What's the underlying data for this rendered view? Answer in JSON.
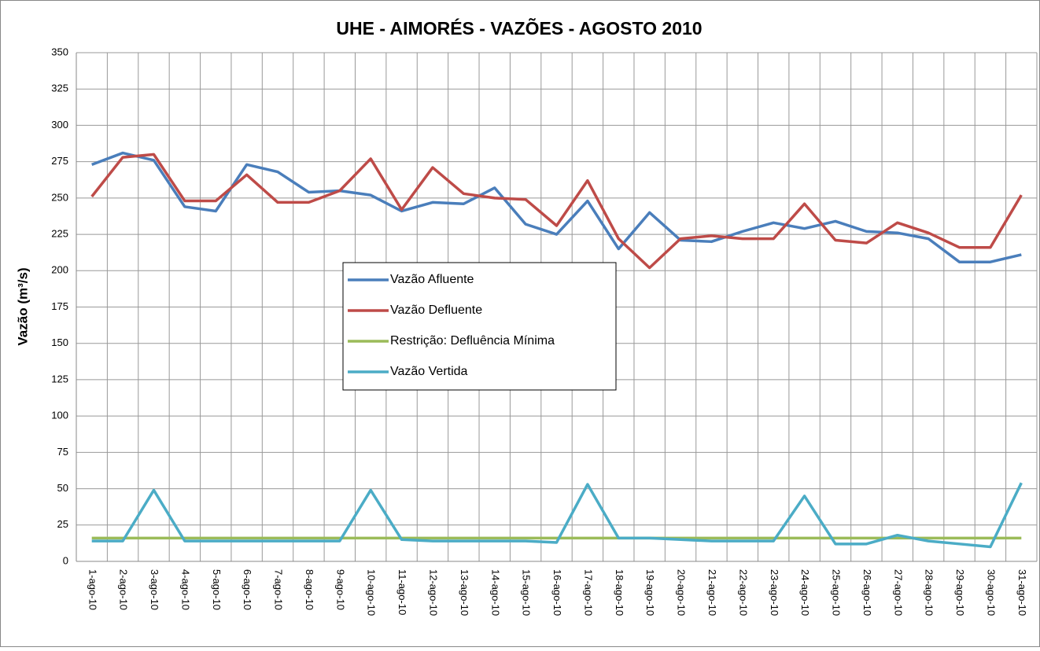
{
  "chart_data": {
    "type": "line",
    "title": "UHE - AIMORÉS - VAZÕES -   AGOSTO 2010",
    "y_label": "Vazão (m³/s)",
    "categories": [
      "1-ago-10",
      "2-ago-10",
      "3-ago-10",
      "4-ago-10",
      "5-ago-10",
      "6-ago-10",
      "7-ago-10",
      "8-ago-10",
      "9-ago-10",
      "10-ago-10",
      "11-ago-10",
      "12-ago-10",
      "13-ago-10",
      "14-ago-10",
      "15-ago-10",
      "16-ago-10",
      "17-ago-10",
      "18-ago-10",
      "19-ago-10",
      "20-ago-10",
      "21-ago-10",
      "22-ago-10",
      "23-ago-10",
      "24-ago-10",
      "25-ago-10",
      "26-ago-10",
      "27-ago-10",
      "28-ago-10",
      "29-ago-10",
      "30-ago-10",
      "31-ago-10"
    ],
    "series": [
      {
        "name": "Vazão Afluente",
        "color": "#4a7ebb",
        "values": [
          273,
          281,
          276,
          244,
          241,
          273,
          268,
          254,
          255,
          252,
          241,
          247,
          246,
          257,
          232,
          225,
          248,
          215,
          240,
          221,
          220,
          227,
          233,
          229,
          234,
          227,
          226,
          222,
          206,
          206,
          211
        ]
      },
      {
        "name": "Vazão Defluente",
        "color": "#be4b48",
        "values": [
          251,
          278,
          280,
          248,
          248,
          266,
          247,
          247,
          255,
          277,
          242,
          271,
          253,
          250,
          249,
          231,
          262,
          222,
          202,
          222,
          224,
          222,
          222,
          246,
          221,
          219,
          233,
          226,
          216,
          216,
          252
        ]
      },
      {
        "name": "Restrição: Defluência Mínima",
        "color": "#9bbb59",
        "values": [
          16,
          16,
          16,
          16,
          16,
          16,
          16,
          16,
          16,
          16,
          16,
          16,
          16,
          16,
          16,
          16,
          16,
          16,
          16,
          16,
          16,
          16,
          16,
          16,
          16,
          16,
          16,
          16,
          16,
          16,
          16
        ]
      },
      {
        "name": "Vazão Vertida",
        "color": "#4bacc6",
        "values": [
          14,
          14,
          49,
          14,
          14,
          14,
          14,
          14,
          14,
          49,
          15,
          14,
          14,
          14,
          14,
          13,
          53,
          16,
          16,
          15,
          14,
          14,
          14,
          45,
          12,
          12,
          18,
          14,
          12,
          10,
          54
        ]
      }
    ],
    "ylim": [
      0,
      350
    ],
    "yticks": [
      0,
      25,
      50,
      75,
      100,
      125,
      150,
      175,
      200,
      225,
      250,
      275,
      300,
      325,
      350
    ],
    "grid": true
  }
}
